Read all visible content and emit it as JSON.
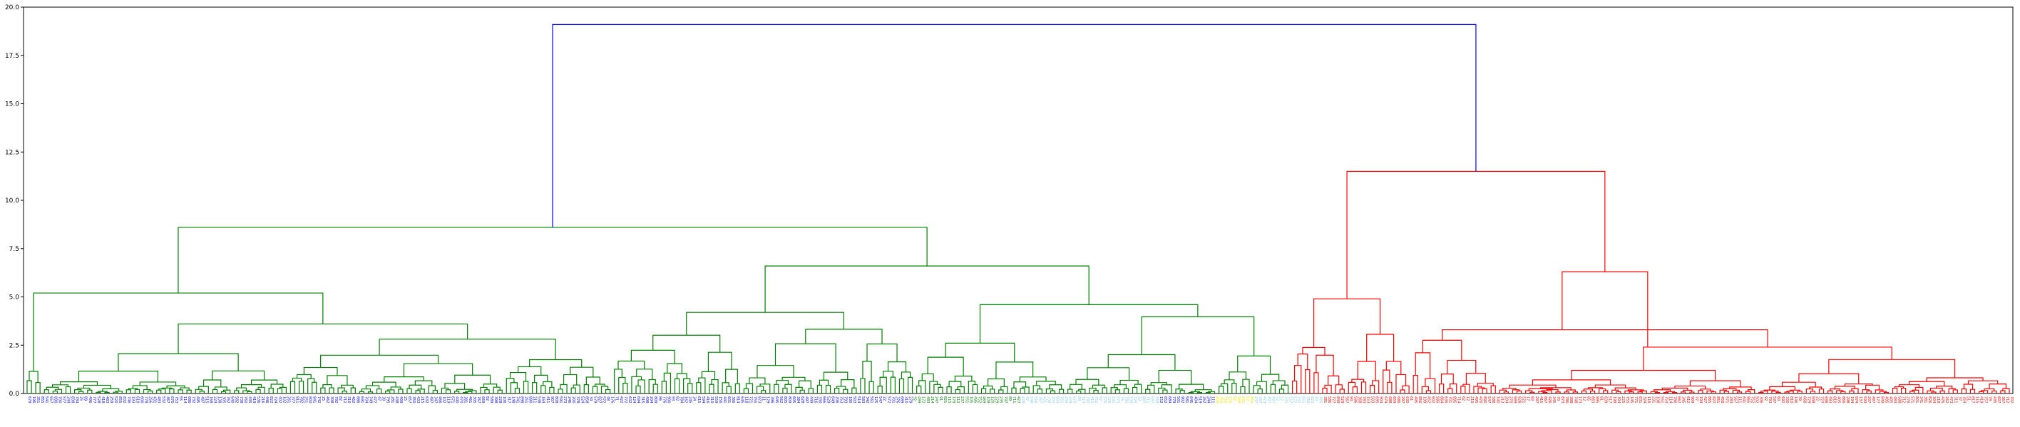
{
  "chart_data": {
    "type": "dendrogram",
    "title": "",
    "xlabel": "",
    "ylabel": "",
    "ylim": [
      0,
      20
    ],
    "yticks": [
      "0.0",
      "2.5",
      "5.0",
      "7.5",
      "10.0",
      "12.5",
      "15.0",
      "17.5",
      "20.0"
    ],
    "grid": false,
    "leaf_label_rotation": 90,
    "colors": {
      "root_link": "#0000ff",
      "cluster_1": "#008000",
      "cluster_2": "#ff0000",
      "axis": "#000000"
    },
    "leaf_label_colors": [
      "#0000ff",
      "#008000",
      "#00bfbf",
      "#87ceeb",
      "#e6e600",
      "#ff0000"
    ],
    "top_links": [
      {
        "name": "root",
        "height": 19.1,
        "color": "#0000ff"
      },
      {
        "name": "cluster_1_root",
        "height": 8.6,
        "color": "#008000"
      },
      {
        "name": "cluster_2_root",
        "height": 11.5,
        "color": "#ff0000"
      },
      {
        "name": "cluster_1_left",
        "height": 5.2,
        "color": "#008000"
      },
      {
        "name": "cluster_1_right",
        "height": 6.6,
        "color": "#008000"
      },
      {
        "name": "cluster_2_left",
        "height": 4.9,
        "color": "#ff0000"
      },
      {
        "name": "cluster_2_right",
        "height": 6.3,
        "color": "#ff0000"
      },
      {
        "name": "cluster_2_right_sub",
        "height": 3.3,
        "color": "#ff0000"
      }
    ]
  }
}
